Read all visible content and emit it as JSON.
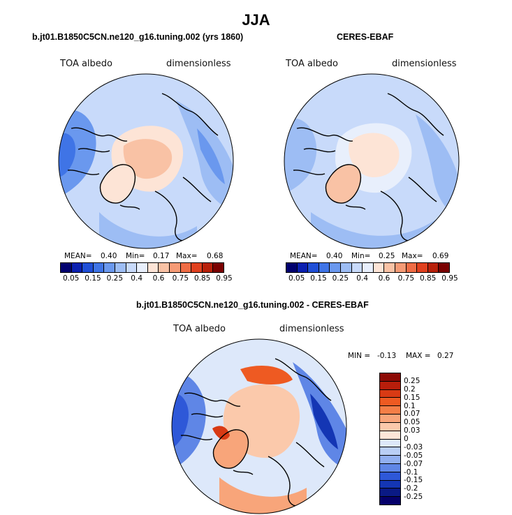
{
  "title": "JJA",
  "chart_data": [
    {
      "type": "heatmap",
      "title": "b.jt01.B1850C5CN.ne120_g16.tuning.002 (yrs 1860)",
      "left_label": "TOA albedo",
      "right_label": "dimensionless",
      "stats": {
        "mean_label": "MEAN=",
        "mean": "0.40",
        "min_label": "Min=",
        "min": "0.17",
        "max_label": "Max=",
        "max": "0.68"
      },
      "colorbar_ticks": [
        "0.05",
        "0.15",
        "0.25",
        "0.4",
        "0.6",
        "0.75",
        "0.85",
        "0.95"
      ]
    },
    {
      "type": "heatmap",
      "title": "CERES-EBAF",
      "left_label": "TOA albedo",
      "right_label": "dimensionless",
      "stats": {
        "mean_label": "MEAN=",
        "mean": "0.40",
        "min_label": "Min=",
        "min": "0.25",
        "max_label": "Max=",
        "max": "0.69"
      },
      "colorbar_ticks": [
        "0.05",
        "0.15",
        "0.25",
        "0.4",
        "0.6",
        "0.75",
        "0.85",
        "0.95"
      ]
    },
    {
      "type": "heatmap",
      "title": "b.jt01.B1850C5CN.ne120_g16.tuning.002 - CERES-EBAF",
      "left_label": "TOA albedo",
      "right_label": "dimensionless",
      "stats": {
        "min_label": "MIN =",
        "min": "-0.13",
        "max_label": "MAX =",
        "max": "0.27"
      },
      "colorbar_ticks": [
        "0.25",
        "0.2",
        "0.15",
        "0.1",
        "0.07",
        "0.05",
        "0.03",
        "0",
        "-0.03",
        "-0.05",
        "-0.07",
        "-0.1",
        "-0.15",
        "-0.2",
        "-0.25"
      ]
    }
  ],
  "colors": {
    "abs_scale": [
      "#00006e",
      "#0a1fb0",
      "#1f4ed6",
      "#3f74e6",
      "#6a98ee",
      "#9dbdf4",
      "#c8dafa",
      "#e8effc",
      "#fde4d6",
      "#f9c2a5",
      "#f59a75",
      "#ef6c45",
      "#e0401e",
      "#b8200a",
      "#7a0000"
    ],
    "diff_scale": [
      "#8c0a05",
      "#b81e0b",
      "#d83a14",
      "#ee5a22",
      "#f47e47",
      "#f8a57a",
      "#fbc9ab",
      "#fde6d8",
      "#dde8fa",
      "#b9cef5",
      "#91aff0",
      "#5f86e6",
      "#2e58d8",
      "#1436b4",
      "#0a1a85",
      "#05006a"
    ]
  }
}
